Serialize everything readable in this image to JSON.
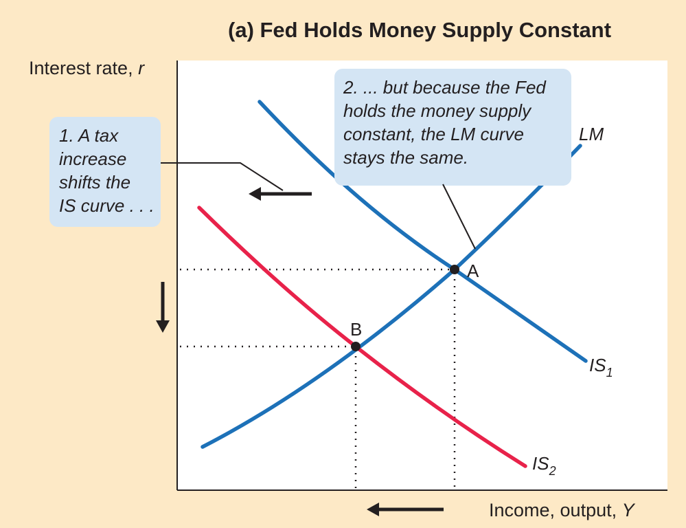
{
  "title": "(a) Fed Holds Money Supply Constant",
  "axes": {
    "y_label": "Interest rate, ",
    "y_var": "r",
    "x_label": "Income, output, ",
    "x_var": "Y"
  },
  "callouts": {
    "left": [
      "1. A tax",
      "increase",
      "shifts the",
      "IS curve . . ."
    ],
    "right": [
      "2. ... but because the Fed",
      "holds the money supply",
      "constant, the LM curve",
      "stays the same."
    ]
  },
  "curves": {
    "lm": "LM",
    "is1_base": "IS",
    "is1_sub": "1",
    "is2_base": "IS",
    "is2_sub": "2"
  },
  "points": {
    "a": "A",
    "b": "B"
  },
  "colors": {
    "background": "#fde9c6",
    "plot_area": "#ffffff",
    "callout_fill": "#d4e5f4",
    "lm_curve": "#1d71b8",
    "is1_curve": "#1d71b8",
    "is2_curve": "#e8224a",
    "ink": "#231f20"
  }
}
